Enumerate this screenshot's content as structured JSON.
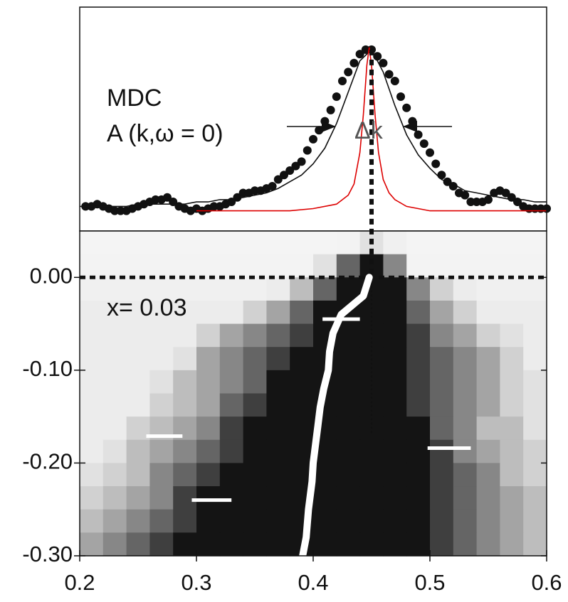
{
  "chart_data": [
    {
      "type": "line",
      "annotations": [
        "MDC",
        "A (k,ω = 0)",
        "Δk"
      ],
      "xlim": [
        0.2,
        0.6
      ],
      "ylim": [
        0,
        1
      ],
      "series": [
        {
          "style": "markers",
          "color": "#111111",
          "x": [
            0.205,
            0.21,
            0.215,
            0.22,
            0.225,
            0.23,
            0.235,
            0.24,
            0.245,
            0.25,
            0.255,
            0.26,
            0.265,
            0.27,
            0.275,
            0.28,
            0.285,
            0.29,
            0.295,
            0.3,
            0.305,
            0.31,
            0.315,
            0.32,
            0.325,
            0.33,
            0.335,
            0.34,
            0.345,
            0.35,
            0.355,
            0.36,
            0.365,
            0.37,
            0.375,
            0.38,
            0.385,
            0.39,
            0.395,
            0.4,
            0.405,
            0.41,
            0.415,
            0.42,
            0.425,
            0.43,
            0.435,
            0.44,
            0.445,
            0.45,
            0.455,
            0.46,
            0.465,
            0.47,
            0.475,
            0.48,
            0.485,
            0.49,
            0.495,
            0.5,
            0.505,
            0.51,
            0.515,
            0.52,
            0.525,
            0.53,
            0.535,
            0.54,
            0.545,
            0.55,
            0.555,
            0.56,
            0.565,
            0.57,
            0.575,
            0.58,
            0.585,
            0.59,
            0.595,
            0.6
          ],
          "values": [
            0.11,
            0.11,
            0.12,
            0.11,
            0.1,
            0.09,
            0.09,
            0.09,
            0.1,
            0.11,
            0.12,
            0.13,
            0.14,
            0.14,
            0.15,
            0.13,
            0.11,
            0.1,
            0.09,
            0.1,
            0.09,
            0.1,
            0.11,
            0.11,
            0.12,
            0.13,
            0.15,
            0.17,
            0.17,
            0.18,
            0.18,
            0.19,
            0.2,
            0.23,
            0.25,
            0.27,
            0.29,
            0.31,
            0.36,
            0.41,
            0.45,
            0.49,
            0.54,
            0.6,
            0.67,
            0.71,
            0.75,
            0.79,
            0.81,
            0.81,
            0.78,
            0.75,
            0.7,
            0.67,
            0.6,
            0.55,
            0.49,
            0.43,
            0.39,
            0.35,
            0.3,
            0.25,
            0.22,
            0.2,
            0.17,
            0.16,
            0.13,
            0.13,
            0.13,
            0.14,
            0.17,
            0.18,
            0.17,
            0.15,
            0.13,
            0.11,
            0.1,
            0.1,
            0.1,
            0.1
          ]
        },
        {
          "style": "line",
          "color": "#111111",
          "x": [
            0.2,
            0.21,
            0.22,
            0.23,
            0.24,
            0.25,
            0.26,
            0.27,
            0.28,
            0.29,
            0.3,
            0.31,
            0.32,
            0.33,
            0.34,
            0.35,
            0.36,
            0.37,
            0.38,
            0.39,
            0.4,
            0.41,
            0.42,
            0.43,
            0.44,
            0.45,
            0.46,
            0.47,
            0.48,
            0.49,
            0.5,
            0.51,
            0.52,
            0.53,
            0.54,
            0.55,
            0.56,
            0.57,
            0.58,
            0.59,
            0.6
          ],
          "values": [
            0.11,
            0.11,
            0.11,
            0.11,
            0.11,
            0.12,
            0.12,
            0.12,
            0.12,
            0.12,
            0.13,
            0.13,
            0.14,
            0.14,
            0.15,
            0.16,
            0.17,
            0.19,
            0.22,
            0.25,
            0.3,
            0.37,
            0.48,
            0.62,
            0.76,
            0.81,
            0.71,
            0.56,
            0.43,
            0.34,
            0.28,
            0.23,
            0.21,
            0.18,
            0.17,
            0.16,
            0.15,
            0.14,
            0.14,
            0.13,
            0.13
          ]
        },
        {
          "style": "line",
          "color": "#dd0000",
          "x": [
            0.3,
            0.34,
            0.38,
            0.4,
            0.42,
            0.43,
            0.435,
            0.44,
            0.443,
            0.446,
            0.448,
            0.45,
            0.453,
            0.456,
            0.46,
            0.465,
            0.47,
            0.48,
            0.5,
            0.54,
            0.6
          ],
          "values": [
            0.09,
            0.09,
            0.09,
            0.1,
            0.12,
            0.16,
            0.21,
            0.35,
            0.52,
            0.74,
            0.82,
            0.74,
            0.52,
            0.35,
            0.23,
            0.17,
            0.14,
            0.11,
            0.09,
            0.09,
            0.09
          ]
        }
      ]
    },
    {
      "type": "heatmap",
      "annotation": "x= 0.03",
      "xlim": [
        0.2,
        0.6
      ],
      "ylim": [
        -0.3,
        0.05
      ],
      "xticks": [
        0.2,
        0.3,
        0.4,
        0.5,
        0.6
      ],
      "yticks": [
        {
          "value": 0,
          "label": "0.00"
        },
        {
          "value": -0.1,
          "label": "-0.10"
        },
        {
          "value": -0.2,
          "label": "-0.20"
        },
        {
          "value": -0.3,
          "label": "-0.30"
        }
      ],
      "x": [
        0.21,
        0.23,
        0.25,
        0.27,
        0.29,
        0.31,
        0.33,
        0.35,
        0.37,
        0.39,
        0.41,
        0.43,
        0.45,
        0.47,
        0.49,
        0.51,
        0.53,
        0.55,
        0.57,
        0.59
      ],
      "y": [
        0.0375,
        0.0125,
        -0.0125,
        -0.0375,
        -0.0625,
        -0.0875,
        -0.1125,
        -0.1375,
        -0.1625,
        -0.1875,
        -0.2125,
        -0.2375,
        -0.2625,
        -0.2875
      ],
      "z": [
        [
          0.05,
          0.05,
          0.05,
          0.05,
          0.05,
          0.05,
          0.05,
          0.05,
          0.05,
          0.05,
          0.05,
          0.1,
          0.3,
          0.15,
          0.05,
          0.05,
          0.05,
          0.05,
          0.05,
          0.05
        ],
        [
          0.1,
          0.1,
          0.1,
          0.1,
          0.1,
          0.1,
          0.1,
          0.1,
          0.1,
          0.1,
          0.3,
          0.8,
          1,
          0.7,
          0.1,
          0.1,
          0.1,
          0.1,
          0.1,
          0.1
        ],
        [
          0.15,
          0.15,
          0.15,
          0.15,
          0.15,
          0.15,
          0.15,
          0.15,
          0.2,
          0.5,
          0.8,
          1,
          1,
          1,
          0.7,
          0.4,
          0.2,
          0.15,
          0.15,
          0.15
        ],
        [
          0.2,
          0.2,
          0.2,
          0.2,
          0.2,
          0.2,
          0.2,
          0.4,
          0.6,
          0.8,
          1,
          1,
          1,
          1,
          0.8,
          0.6,
          0.4,
          0.2,
          0.2,
          0.2
        ],
        [
          0.2,
          0.2,
          0.2,
          0.2,
          0.2,
          0.4,
          0.6,
          0.7,
          0.8,
          0.9,
          1,
          1,
          1,
          1,
          0.9,
          0.7,
          0.6,
          0.4,
          0.3,
          0.2
        ],
        [
          0.2,
          0.2,
          0.2,
          0.2,
          0.3,
          0.6,
          0.7,
          0.8,
          0.9,
          1,
          1,
          1,
          1,
          1,
          0.9,
          0.8,
          0.7,
          0.6,
          0.4,
          0.2
        ],
        [
          0.2,
          0.2,
          0.2,
          0.3,
          0.5,
          0.6,
          0.7,
          0.8,
          1,
          1,
          1,
          1,
          1,
          1,
          0.9,
          0.8,
          0.7,
          0.6,
          0.4,
          0.3
        ],
        [
          0.2,
          0.2,
          0.2,
          0.4,
          0.5,
          0.6,
          0.8,
          0.9,
          1,
          1,
          1,
          1,
          1,
          1,
          0.9,
          0.8,
          0.7,
          0.6,
          0.4,
          0.3
        ],
        [
          0.2,
          0.2,
          0.4,
          0.5,
          0.6,
          0.7,
          0.9,
          1,
          1,
          1,
          1,
          1,
          1,
          1,
          1,
          0.8,
          0.7,
          0.5,
          0.5,
          0.3
        ],
        [
          0.2,
          0.3,
          0.5,
          0.6,
          0.7,
          0.8,
          0.9,
          1,
          1,
          1,
          1,
          1,
          1,
          1,
          1,
          0.9,
          0.7,
          0.6,
          0.5,
          0.4
        ],
        [
          0.3,
          0.4,
          0.5,
          0.7,
          0.8,
          0.9,
          1,
          1,
          1,
          1,
          1,
          1,
          1,
          1,
          1,
          0.9,
          0.8,
          0.7,
          0.5,
          0.4
        ],
        [
          0.4,
          0.5,
          0.6,
          0.7,
          0.9,
          1,
          1,
          1,
          1,
          1,
          1,
          1,
          1,
          1,
          1,
          0.9,
          0.8,
          0.7,
          0.6,
          0.5
        ],
        [
          0.5,
          0.6,
          0.7,
          0.8,
          0.9,
          1,
          1,
          1,
          1,
          1,
          1,
          1,
          1,
          1,
          1,
          0.9,
          0.8,
          0.7,
          0.6,
          0.5
        ],
        [
          0.6,
          0.7,
          0.8,
          0.9,
          1,
          1,
          1,
          1,
          1,
          1,
          1,
          1,
          1,
          1,
          1,
          0.9,
          0.8,
          0.7,
          0.6,
          0.5
        ]
      ],
      "peak": {
        "color": "#ffffff",
        "x": [
          0.448,
          0.443,
          0.424,
          0.417,
          0.414,
          0.413,
          0.409,
          0.406,
          0.404,
          0.402,
          0.4,
          0.399,
          0.396,
          0.394,
          0.391
        ],
        "values": [
          0,
          -0.02,
          -0.04,
          -0.06,
          -0.08,
          -0.1,
          -0.12,
          -0.14,
          -0.16,
          -0.18,
          -0.2,
          -0.22,
          -0.25,
          -0.28,
          -0.3
        ]
      },
      "markers": [
        {
          "x": [
            0.408,
            0.44
          ],
          "value": -0.045
        },
        {
          "x": [
            0.257,
            0.288
          ],
          "value": -0.171
        },
        {
          "x": [
            0.296,
            0.33
          ],
          "value": -0.24
        },
        {
          "x": [
            0.498,
            0.535
          ],
          "value": -0.184
        }
      ],
      "fermi_line": 0,
      "peak_line": {
        "k": 0.45,
        "E_end": -0.17
      }
    }
  ]
}
